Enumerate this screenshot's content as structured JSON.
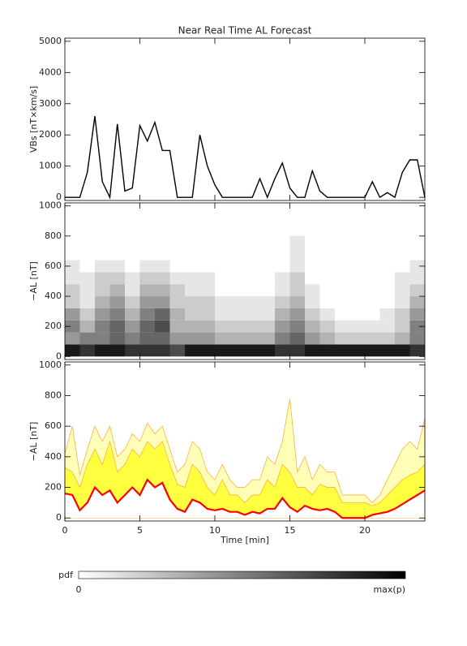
{
  "chart_data": [
    {
      "type": "line",
      "title": "Near Real Time AL Forecast",
      "ylabel": "VBs [nT×km/s]",
      "x": [
        0,
        0.5,
        1,
        1.5,
        2,
        2.5,
        3,
        3.5,
        4,
        4.5,
        5,
        5.5,
        6,
        6.5,
        7,
        7.5,
        8,
        8.5,
        9,
        9.5,
        10,
        10.5,
        11,
        11.5,
        12,
        12.5,
        13,
        13.5,
        14,
        14.5,
        15,
        15.5,
        16,
        16.5,
        17,
        17.5,
        18,
        18.5,
        19,
        19.5,
        20,
        20.5,
        21,
        21.5,
        22,
        22.5,
        23,
        23.5,
        24
      ],
      "values": [
        0,
        0,
        0,
        800,
        2600,
        500,
        0,
        2350,
        200,
        300,
        2300,
        1800,
        2400,
        1500,
        1500,
        0,
        0,
        0,
        2000,
        1000,
        400,
        0,
        0,
        0,
        0,
        0,
        600,
        0,
        600,
        1100,
        300,
        0,
        0,
        850,
        200,
        0,
        0,
        0,
        0,
        0,
        0,
        500,
        0,
        150,
        0,
        800,
        1200,
        1200,
        0
      ],
      "color": "#000000",
      "xlim": [
        0,
        24
      ],
      "ylim": [
        -100,
        5100
      ],
      "yticks": [
        0,
        1000,
        2000,
        3000,
        4000,
        5000
      ]
    },
    {
      "type": "heatmap",
      "ylabel": "−AL [nT]",
      "xbins": [
        0,
        1,
        2,
        3,
        4,
        5,
        6,
        7,
        8,
        9,
        10,
        11,
        12,
        13,
        14,
        15,
        16,
        17,
        18,
        19,
        20,
        21,
        22,
        23,
        24
      ],
      "ybins": [
        0,
        80,
        160,
        240,
        320,
        400,
        480,
        560,
        640,
        720,
        800
      ],
      "values": [
        [
          0.9,
          0.8,
          0.9,
          0.9,
          0.8,
          0.8,
          0.8,
          0.7,
          0.9,
          0.9,
          0.9,
          0.9,
          0.9,
          0.9,
          0.8,
          0.8,
          0.9,
          0.9,
          0.9,
          0.9,
          0.9,
          0.9,
          0.9,
          0.8
        ],
        [
          0.4,
          0.5,
          0.5,
          0.6,
          0.5,
          0.6,
          0.6,
          0.4,
          0.4,
          0.4,
          0.3,
          0.3,
          0.3,
          0.3,
          0.5,
          0.6,
          0.4,
          0.3,
          0.2,
          0.2,
          0.2,
          0.2,
          0.3,
          0.5
        ],
        [
          0.5,
          0.3,
          0.5,
          0.6,
          0.4,
          0.6,
          0.7,
          0.3,
          0.3,
          0.3,
          0.2,
          0.2,
          0.2,
          0.2,
          0.4,
          0.5,
          0.3,
          0.2,
          0.1,
          0.1,
          0.1,
          0.1,
          0.2,
          0.5
        ],
        [
          0.4,
          0.2,
          0.4,
          0.5,
          0.3,
          0.5,
          0.6,
          0.3,
          0.2,
          0.2,
          0.1,
          0.1,
          0.1,
          0.1,
          0.3,
          0.4,
          0.2,
          0.1,
          0,
          0,
          0,
          0.1,
          0.2,
          0.4
        ],
        [
          0.2,
          0.1,
          0.3,
          0.4,
          0.2,
          0.4,
          0.4,
          0.2,
          0.2,
          0.2,
          0.1,
          0.1,
          0.1,
          0.1,
          0.2,
          0.3,
          0.1,
          0,
          0,
          0,
          0,
          0,
          0.1,
          0.3
        ],
        [
          0.2,
          0.1,
          0.2,
          0.3,
          0.1,
          0.3,
          0.3,
          0.2,
          0.1,
          0.1,
          0,
          0,
          0,
          0,
          0.1,
          0.2,
          0.1,
          0,
          0,
          0,
          0,
          0,
          0.1,
          0.2
        ],
        [
          0.1,
          0.1,
          0.2,
          0.2,
          0.1,
          0.2,
          0.2,
          0.1,
          0.1,
          0.1,
          0,
          0,
          0,
          0,
          0.1,
          0.2,
          0,
          0,
          0,
          0,
          0,
          0,
          0.1,
          0.1
        ],
        [
          0.1,
          0,
          0.1,
          0.1,
          0,
          0.1,
          0.1,
          0,
          0,
          0,
          0,
          0,
          0,
          0,
          0,
          0.1,
          0,
          0,
          0,
          0,
          0,
          0,
          0,
          0.1
        ],
        [
          0,
          0,
          0,
          0,
          0,
          0,
          0,
          0,
          0,
          0,
          0,
          0,
          0,
          0,
          0,
          0.1,
          0,
          0,
          0,
          0,
          0,
          0,
          0,
          0
        ],
        [
          0,
          0,
          0,
          0,
          0,
          0,
          0,
          0,
          0,
          0,
          0,
          0,
          0,
          0,
          0,
          0.1,
          0,
          0,
          0,
          0,
          0,
          0,
          0,
          0
        ]
      ],
      "ylim": [
        -20,
        1020
      ],
      "yticks": [
        0,
        200,
        400,
        600,
        800,
        1000
      ],
      "colorbar": {
        "label": "pdf",
        "min_label": "0",
        "max_label": "max(p)"
      }
    },
    {
      "type": "area",
      "ylabel": "−AL [nT]",
      "xlabel": "Time [min]",
      "x": [
        0,
        0.5,
        1,
        1.5,
        2,
        2.5,
        3,
        3.5,
        4,
        4.5,
        5,
        5.5,
        6,
        6.5,
        7,
        7.5,
        8,
        8.5,
        9,
        9.5,
        10,
        10.5,
        11,
        11.5,
        12,
        12.5,
        13,
        13.5,
        14,
        14.5,
        15,
        15.5,
        16,
        16.5,
        17,
        17.5,
        18,
        18.5,
        19,
        19.5,
        20,
        20.5,
        21,
        21.5,
        22,
        22.5,
        23,
        23.5,
        24
      ],
      "series": [
        {
          "color": "#ff0000",
          "values": [
            160,
            150,
            50,
            100,
            200,
            150,
            180,
            100,
            150,
            200,
            150,
            250,
            200,
            230,
            120,
            60,
            40,
            120,
            100,
            60,
            50,
            60,
            40,
            40,
            20,
            40,
            30,
            60,
            60,
            130,
            70,
            40,
            80,
            60,
            50,
            60,
            40,
            0,
            0,
            0,
            0,
            20,
            30,
            40,
            60,
            90,
            120,
            150,
            180
          ]
        },
        {
          "color": "#ffff40",
          "edge_color": "#ffb040",
          "values": [
            330,
            300,
            200,
            350,
            450,
            350,
            500,
            300,
            350,
            450,
            400,
            500,
            450,
            500,
            350,
            220,
            200,
            350,
            300,
            200,
            150,
            250,
            150,
            150,
            100,
            150,
            150,
            250,
            200,
            350,
            300,
            200,
            200,
            150,
            220,
            200,
            200,
            100,
            100,
            100,
            100,
            80,
            100,
            150,
            200,
            250,
            280,
            300,
            350
          ]
        },
        {
          "color": "#ffffb8",
          "edge_color": "#ffb040",
          "values": [
            420,
            600,
            280,
            450,
            600,
            500,
            600,
            400,
            450,
            550,
            500,
            620,
            550,
            600,
            450,
            300,
            350,
            500,
            450,
            300,
            250,
            350,
            250,
            200,
            200,
            250,
            250,
            400,
            350,
            500,
            780,
            300,
            400,
            250,
            350,
            300,
            300,
            150,
            150,
            150,
            150,
            100,
            150,
            250,
            350,
            450,
            500,
            450,
            650
          ]
        }
      ],
      "xlim": [
        0,
        24
      ],
      "ylim": [
        -20,
        1020
      ],
      "xticks": [
        0,
        5,
        10,
        15,
        20
      ],
      "yticks": [
        0,
        200,
        400,
        600,
        800,
        1000
      ]
    }
  ]
}
